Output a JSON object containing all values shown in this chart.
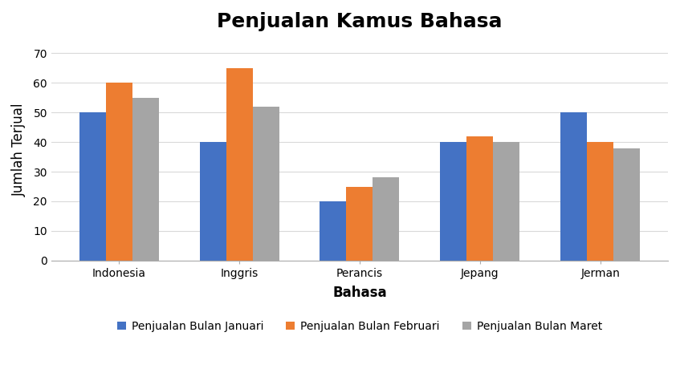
{
  "title": "Penjualan Kamus Bahasa",
  "xlabel": "Bahasa",
  "ylabel": "Jumlah Terjual",
  "categories": [
    "Indonesia",
    "Inggris",
    "Perancis",
    "Jepang",
    "Jerman"
  ],
  "series": [
    {
      "label": "Penjualan Bulan Januari",
      "color": "#4472C4",
      "values": [
        50,
        40,
        20,
        40,
        50
      ]
    },
    {
      "label": "Penjualan Bulan Februari",
      "color": "#ED7D31",
      "values": [
        60,
        65,
        25,
        42,
        40
      ]
    },
    {
      "label": "Penjualan Bulan Maret",
      "color": "#A5A5A5",
      "values": [
        55,
        52,
        28,
        40,
        38
      ]
    }
  ],
  "ylim": [
    0,
    75
  ],
  "yticks": [
    0,
    10,
    20,
    30,
    40,
    50,
    60,
    70
  ],
  "title_fontsize": 18,
  "axis_label_fontsize": 12,
  "tick_fontsize": 10,
  "legend_fontsize": 10,
  "bar_width": 0.22,
  "background_color": "#FFFFFF",
  "grid_color": "#D9D9D9",
  "title_fontweight": "bold",
  "xlabel_fontweight": "bold",
  "ylabel_fontweight": "normal"
}
